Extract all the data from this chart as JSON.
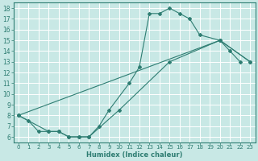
{
  "line1_x": [
    0,
    1,
    2,
    3,
    4,
    5,
    6,
    7,
    8,
    9,
    11,
    12,
    13,
    14,
    15,
    16,
    17,
    18,
    20,
    21,
    22
  ],
  "line1_y": [
    8,
    7.5,
    6.5,
    6.5,
    6.5,
    6,
    6,
    6,
    7,
    8.5,
    11,
    12.5,
    17.5,
    17.5,
    18,
    17.5,
    17,
    15.5,
    15,
    14,
    13
  ],
  "line2_x": [
    0,
    3,
    4,
    5,
    6,
    7,
    10,
    15,
    20,
    23
  ],
  "line2_y": [
    8,
    6.5,
    6.5,
    6,
    6,
    6,
    8.5,
    13,
    15,
    13
  ],
  "line3_x": [
    0,
    20,
    23
  ],
  "line3_y": [
    8,
    15,
    13
  ],
  "line_color": "#2e7d72",
  "bg_color": "#c8e8e5",
  "grid_color": "#ffffff",
  "xlabel": "Humidex (Indice chaleur)",
  "xlim": [
    -0.5,
    23.5
  ],
  "ylim": [
    5.5,
    18.5
  ],
  "xticks": [
    0,
    1,
    2,
    3,
    4,
    5,
    6,
    7,
    8,
    9,
    10,
    11,
    12,
    13,
    14,
    15,
    16,
    17,
    18,
    19,
    20,
    21,
    22,
    23
  ],
  "yticks": [
    6,
    7,
    8,
    9,
    10,
    11,
    12,
    13,
    14,
    15,
    16,
    17,
    18
  ]
}
